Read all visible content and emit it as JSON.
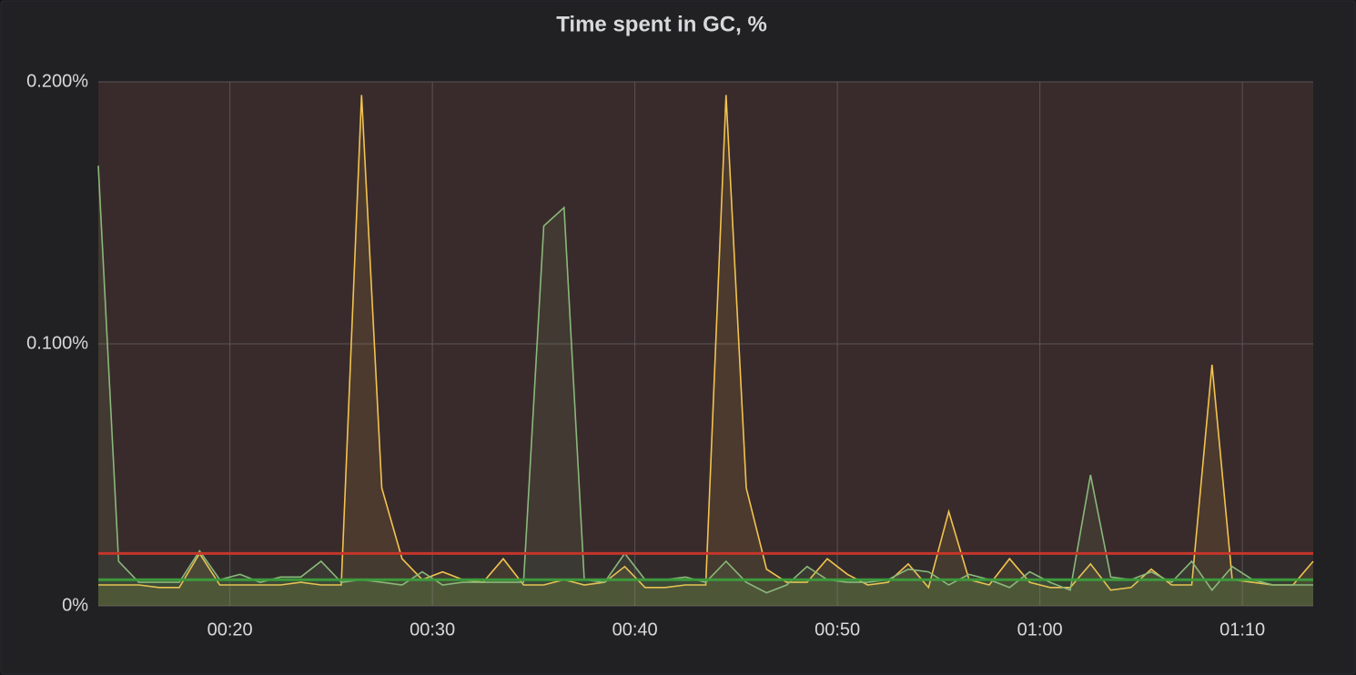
{
  "chart_data": {
    "type": "line",
    "title": "Time spent in GC, %",
    "x": [
      13.5,
      14.5,
      15.5,
      16.5,
      17.5,
      18.5,
      19.5,
      20.5,
      21.5,
      22.5,
      23.5,
      24.5,
      25.5,
      26.5,
      27.5,
      28.5,
      29.5,
      30.5,
      31.5,
      32.5,
      33.5,
      34.5,
      35.5,
      36.5,
      37.5,
      38.5,
      39.5,
      40.5,
      41.5,
      42.5,
      43.5,
      44.5,
      45.5,
      46.5,
      47.5,
      48.5,
      49.5,
      50.5,
      51.5,
      52.5,
      53.5,
      54.5,
      55.5,
      56.5,
      57.5,
      58.5,
      59.5,
      60.5,
      61.5,
      62.5,
      63.5,
      64.5,
      65.5,
      66.5,
      67.5,
      68.5,
      69.5,
      70.5,
      71.5,
      72.5,
      73.5
    ],
    "series": [
      {
        "color": "#f2c34f",
        "values": [
          0.008,
          0.008,
          0.008,
          0.007,
          0.007,
          0.02,
          0.008,
          0.008,
          0.008,
          0.008,
          0.009,
          0.008,
          0.008,
          0.195,
          0.045,
          0.018,
          0.01,
          0.013,
          0.01,
          0.009,
          0.018,
          0.008,
          0.008,
          0.01,
          0.008,
          0.009,
          0.015,
          0.007,
          0.007,
          0.008,
          0.008,
          0.195,
          0.045,
          0.014,
          0.009,
          0.009,
          0.018,
          0.012,
          0.008,
          0.009,
          0.016,
          0.007,
          0.036,
          0.01,
          0.008,
          0.018,
          0.009,
          0.007,
          0.007,
          0.016,
          0.006,
          0.007,
          0.014,
          0.008,
          0.008,
          0.092,
          0.01,
          0.009,
          0.008,
          0.008,
          0.017
        ]
      },
      {
        "color": "#8ab87a",
        "values": [
          0.168,
          0.017,
          0.009,
          0.009,
          0.009,
          0.021,
          0.01,
          0.012,
          0.009,
          0.011,
          0.011,
          0.017,
          0.009,
          0.01,
          0.009,
          0.008,
          0.013,
          0.008,
          0.009,
          0.009,
          0.009,
          0.009,
          0.145,
          0.152,
          0.01,
          0.009,
          0.02,
          0.01,
          0.01,
          0.011,
          0.009,
          0.017,
          0.009,
          0.005,
          0.008,
          0.015,
          0.01,
          0.009,
          0.009,
          0.01,
          0.014,
          0.013,
          0.008,
          0.012,
          0.01,
          0.007,
          0.013,
          0.009,
          0.006,
          0.05,
          0.011,
          0.01,
          0.013,
          0.009,
          0.017,
          0.006,
          0.015,
          0.01,
          0.008,
          0.008,
          0.008
        ]
      }
    ],
    "thresholds": [
      {
        "value": 0.01,
        "color": "#3c9a3c"
      },
      {
        "value": 0.02,
        "color": "#c4362b"
      }
    ],
    "xlim": [
      13.5,
      73.5
    ],
    "xticks": [
      {
        "value": 20,
        "label": "00:20"
      },
      {
        "value": 30,
        "label": "00:30"
      },
      {
        "value": 40,
        "label": "00:40"
      },
      {
        "value": 50,
        "label": "00:50"
      },
      {
        "value": 60,
        "label": "01:00"
      },
      {
        "value": 70,
        "label": "01:10"
      }
    ],
    "ylim": [
      0,
      0.2
    ],
    "yticks": [
      {
        "value": 0,
        "label": "0%"
      },
      {
        "value": 0.1,
        "label": "0.100%"
      },
      {
        "value": 0.2,
        "label": "0.200%"
      }
    ],
    "grid": true
  }
}
